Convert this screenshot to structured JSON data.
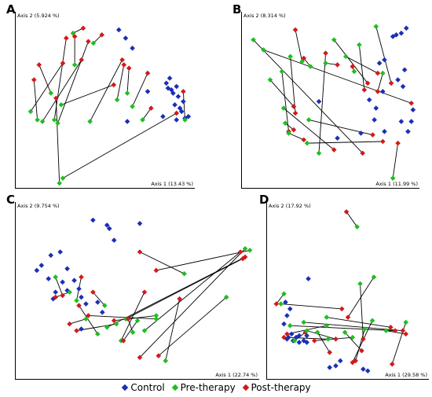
{
  "legend": {
    "items": [
      {
        "label": "Control",
        "color": "#1b2fb5"
      },
      {
        "label": "Pre-therapy",
        "color": "#1fbf1f"
      },
      {
        "label": "Post-therapy",
        "color": "#d11a1a"
      }
    ]
  },
  "chart_data": [
    {
      "panel": "A",
      "type": "scatter",
      "xlabel": "Axis 1 (13.43 %)",
      "ylabel": "Axis 2 (5.924 %)",
      "xlim": [
        0,
        1
      ],
      "ylim": [
        0,
        1
      ],
      "control": [
        [
          0.86,
          0.6
        ],
        [
          0.88,
          0.63
        ],
        [
          0.87,
          0.57
        ],
        [
          0.89,
          0.56
        ],
        [
          0.9,
          0.54
        ],
        [
          0.92,
          0.58
        ],
        [
          0.93,
          0.52
        ],
        [
          0.91,
          0.47
        ],
        [
          0.94,
          0.45
        ],
        [
          0.96,
          0.49
        ],
        [
          0.95,
          0.43
        ],
        [
          0.99,
          0.4
        ],
        [
          0.97,
          0.39
        ],
        [
          0.92,
          0.38
        ],
        [
          0.84,
          0.4
        ],
        [
          0.75,
          0.55
        ],
        [
          0.63,
          0.37
        ],
        [
          0.62,
          0.87
        ],
        [
          0.66,
          0.81
        ],
        [
          0.58,
          0.92
        ]
      ],
      "pairs": [
        {
          "pre": [
            0.06,
            0.43
          ],
          "post": [
            0.25,
            0.72
          ]
        },
        {
          "pre": [
            0.13,
            0.37
          ],
          "post": [
            0.36,
            0.74
          ]
        },
        {
          "pre": [
            0.18,
            0.54
          ],
          "post": [
            0.11,
            0.71
          ]
        },
        {
          "pre": [
            0.2,
            0.38
          ],
          "post": [
            0.27,
            0.87
          ]
        },
        {
          "pre": [
            0.22,
            0.36
          ],
          "post": [
            0.4,
            0.85
          ]
        },
        {
          "pre": [
            0.24,
            0.47
          ],
          "post": [
            0.55,
            0.59
          ]
        },
        {
          "pre": [
            0.25,
            0.03
          ],
          "post": [
            0.92,
            0.42
          ]
        },
        {
          "pre": [
            0.23,
            0.0
          ],
          "post": [
            0.21,
            0.51
          ]
        },
        {
          "pre": [
            0.31,
            0.9
          ],
          "post": [
            0.37,
            0.93
          ]
        },
        {
          "pre": [
            0.32,
            0.71
          ],
          "post": [
            0.32,
            0.88
          ]
        },
        {
          "pre": [
            0.41,
            0.37
          ],
          "post": [
            0.6,
            0.74
          ]
        },
        {
          "pre": [
            0.43,
            0.84
          ],
          "post": [
            0.48,
            0.89
          ]
        },
        {
          "pre": [
            0.57,
            0.5
          ],
          "post": [
            0.61,
            0.71
          ]
        },
        {
          "pre": [
            0.63,
            0.54
          ],
          "post": [
            0.64,
            0.69
          ]
        },
        {
          "pre": [
            0.66,
            0.46
          ],
          "post": [
            0.75,
            0.66
          ]
        },
        {
          "pre": [
            0.72,
            0.38
          ],
          "post": [
            0.77,
            0.45
          ]
        },
        {
          "pre": [
            0.97,
            0.38
          ],
          "post": [
            0.96,
            0.55
          ]
        },
        {
          "pre": [
            0.1,
            0.38
          ],
          "post": [
            0.08,
            0.62
          ]
        }
      ]
    },
    {
      "panel": "B",
      "type": "scatter",
      "xlabel": "Axis 1 (11.99 %)",
      "ylabel": "Axis 2 (8.314 %)",
      "xlim": [
        0,
        1
      ],
      "ylim": [
        0,
        1
      ],
      "control": [
        [
          0.79,
          0.72
        ],
        [
          0.82,
          0.74
        ],
        [
          0.87,
          0.88
        ],
        [
          0.89,
          0.89
        ],
        [
          0.92,
          0.9
        ],
        [
          0.95,
          0.93
        ],
        [
          0.9,
          0.62
        ],
        [
          0.94,
          0.68
        ],
        [
          0.93,
          0.58
        ],
        [
          0.81,
          0.55
        ],
        [
          0.77,
          0.45
        ],
        [
          0.76,
          0.38
        ],
        [
          0.92,
          0.37
        ],
        [
          0.96,
          0.31
        ],
        [
          0.98,
          0.37
        ],
        [
          0.99,
          0.44
        ],
        [
          0.82,
          0.31
        ],
        [
          0.68,
          0.3
        ],
        [
          0.54,
          0.27
        ],
        [
          0.43,
          0.49
        ],
        [
          0.73,
          0.5
        ]
      ],
      "pairs": [
        {
          "pre": [
            0.04,
            0.86
          ],
          "post": [
            0.69,
            0.18
          ]
        },
        {
          "pre": [
            0.1,
            0.8
          ],
          "post": [
            0.98,
            0.48
          ]
        },
        {
          "pre": [
            0.14,
            0.62
          ],
          "post": [
            0.28,
            0.46
          ]
        },
        {
          "pre": [
            0.21,
            0.67
          ],
          "post": [
            0.25,
            0.31
          ]
        },
        {
          "pre": [
            0.22,
            0.45
          ],
          "post": [
            0.52,
            0.2
          ]
        },
        {
          "pre": [
            0.23,
            0.36
          ],
          "post": [
            0.28,
            0.32
          ]
        },
        {
          "pre": [
            0.25,
            0.3
          ],
          "post": [
            0.34,
            0.26
          ]
        },
        {
          "pre": [
            0.26,
            0.76
          ],
          "post": [
            0.29,
            0.42
          ]
        },
        {
          "pre": [
            0.33,
            0.73
          ],
          "post": [
            0.29,
            0.92
          ]
        },
        {
          "pre": [
            0.36,
            0.24
          ],
          "post": [
            0.81,
            0.25
          ]
        },
        {
          "pre": [
            0.37,
            0.38
          ],
          "post": [
            0.75,
            0.29
          ]
        },
        {
          "pre": [
            0.38,
            0.7
          ],
          "post": [
            0.34,
            0.75
          ]
        },
        {
          "pre": [
            0.43,
            0.18
          ],
          "post": [
            0.47,
            0.78
          ]
        },
        {
          "pre": [
            0.47,
            0.72
          ],
          "post": [
            0.54,
            0.71
          ]
        },
        {
          "pre": [
            0.52,
            0.86
          ],
          "post": [
            0.72,
            0.6
          ]
        },
        {
          "pre": [
            0.59,
            0.76
          ],
          "post": [
            0.78,
            0.66
          ]
        },
        {
          "pre": [
            0.64,
            0.67
          ],
          "post": [
            0.63,
            0.7
          ]
        },
        {
          "pre": [
            0.67,
            0.83
          ],
          "post": [
            0.7,
            0.56
          ]
        },
        {
          "pre": [
            0.77,
            0.94
          ],
          "post": [
            0.86,
            0.6
          ]
        },
        {
          "pre": [
            0.81,
            0.66
          ],
          "post": [
            0.78,
            0.55
          ]
        },
        {
          "pre": [
            0.87,
            0.03
          ],
          "post": [
            0.9,
            0.24
          ]
        }
      ]
    },
    {
      "panel": "C",
      "type": "scatter",
      "xlabel": "Axis 1 (22.74 %)",
      "ylabel": "Axis 2 (9.754 %)",
      "xlim": [
        0,
        1
      ],
      "ylim": [
        0,
        1
      ],
      "control": [
        [
          0.07,
          0.62
        ],
        [
          0.09,
          0.65
        ],
        [
          0.12,
          0.57
        ],
        [
          0.15,
          0.49
        ],
        [
          0.13,
          0.71
        ],
        [
          0.17,
          0.73
        ],
        [
          0.18,
          0.55
        ],
        [
          0.2,
          0.63
        ],
        [
          0.23,
          0.56
        ],
        [
          0.25,
          0.51
        ],
        [
          0.31,
          0.92
        ],
        [
          0.37,
          0.89
        ],
        [
          0.38,
          0.87
        ],
        [
          0.4,
          0.8
        ],
        [
          0.51,
          0.9
        ],
        [
          0.33,
          0.43
        ],
        [
          0.35,
          0.37
        ],
        [
          0.28,
          0.42
        ],
        [
          0.26,
          0.46
        ],
        [
          0.14,
          0.45
        ],
        [
          0.26,
          0.27
        ],
        [
          0.2,
          0.5
        ]
      ],
      "pairs": [
        {
          "pre": [
            0.15,
            0.58
          ],
          "post": [
            0.18,
            0.47
          ]
        },
        {
          "pre": [
            0.21,
            0.49
          ],
          "post": [
            0.15,
            0.46
          ]
        },
        {
          "pre": [
            0.24,
            0.44
          ],
          "post": [
            0.26,
            0.58
          ]
        },
        {
          "pre": [
            0.28,
            0.33
          ],
          "post": [
            0.21,
            0.3
          ]
        },
        {
          "pre": [
            0.33,
            0.24
          ],
          "post": [
            0.25,
            0.41
          ]
        },
        {
          "pre": [
            0.36,
            0.41
          ],
          "post": [
            0.31,
            0.49
          ]
        },
        {
          "pre": [
            0.37,
            0.28
          ],
          "post": [
            0.96,
            0.7
          ]
        },
        {
          "pre": [
            0.41,
            0.3
          ],
          "post": [
            0.24,
            0.26
          ]
        },
        {
          "pre": [
            0.43,
            0.2
          ],
          "post": [
            0.53,
            0.49
          ]
        },
        {
          "pre": [
            0.45,
            0.33
          ],
          "post": [
            0.95,
            0.69
          ]
        },
        {
          "pre": [
            0.48,
            0.25
          ],
          "post": [
            0.46,
            0.33
          ]
        },
        {
          "pre": [
            0.5,
            0.32
          ],
          "post": [
            0.44,
            0.2
          ]
        },
        {
          "pre": [
            0.53,
            0.26
          ],
          "post": [
            0.94,
            0.73
          ]
        },
        {
          "pre": [
            0.58,
            0.35
          ],
          "post": [
            0.4,
            0.32
          ]
        },
        {
          "pre": [
            0.58,
            0.33
          ],
          "post": [
            0.29,
            0.35
          ]
        },
        {
          "pre": [
            0.62,
            0.08
          ],
          "post": [
            0.68,
            0.45
          ]
        },
        {
          "pre": [
            0.7,
            0.6
          ],
          "post": [
            0.51,
            0.73
          ]
        },
        {
          "pre": [
            0.96,
            0.75
          ],
          "post": [
            0.51,
            0.1
          ]
        },
        {
          "pre": [
            0.98,
            0.74
          ],
          "post": [
            0.58,
            0.62
          ]
        },
        {
          "pre": [
            0.88,
            0.46
          ],
          "post": [
            0.59,
            0.11
          ]
        }
      ]
    },
    {
      "panel": "D",
      "type": "scatter",
      "xlabel": "Axis 1 (29.58 %)",
      "ylabel": "Axis 2 (17.92 %)",
      "xlim": [
        0,
        1
      ],
      "ylim": [
        0,
        1
      ],
      "control": [
        [
          0.08,
          0.3
        ],
        [
          0.1,
          0.21
        ],
        [
          0.11,
          0.22
        ],
        [
          0.13,
          0.24
        ],
        [
          0.14,
          0.2
        ],
        [
          0.16,
          0.22
        ],
        [
          0.18,
          0.23
        ],
        [
          0.18,
          0.19
        ],
        [
          0.21,
          0.2
        ],
        [
          0.23,
          0.19
        ],
        [
          0.23,
          0.23
        ],
        [
          0.1,
          0.35
        ],
        [
          0.12,
          0.39
        ],
        [
          0.09,
          0.43
        ],
        [
          0.24,
          0.57
        ],
        [
          0.38,
          0.04
        ],
        [
          0.42,
          0.05
        ],
        [
          0.45,
          0.08
        ],
        [
          0.6,
          0.03
        ],
        [
          0.63,
          0.02
        ]
      ],
      "pairs": [
        {
          "pre": [
            0.06,
            0.42
          ],
          "post": [
            0.46,
            0.39
          ]
        },
        {
          "pre": [
            0.08,
            0.48
          ],
          "post": [
            0.03,
            0.42
          ]
        },
        {
          "pre": [
            0.12,
            0.29
          ],
          "post": [
            0.81,
            0.26
          ]
        },
        {
          "pre": [
            0.15,
            0.2
          ],
          "post": [
            0.22,
            0.25
          ]
        },
        {
          "pre": [
            0.21,
            0.31
          ],
          "post": [
            0.86,
            0.26
          ]
        },
        {
          "pre": [
            0.23,
            0.26
          ],
          "post": [
            0.42,
            0.21
          ]
        },
        {
          "pre": [
            0.3,
            0.25
          ],
          "post": [
            0.38,
            0.13
          ]
        },
        {
          "pre": [
            0.36,
            0.29
          ],
          "post": [
            0.1,
            0.24
          ]
        },
        {
          "pre": [
            0.36,
            0.34
          ],
          "post": [
            0.78,
            0.28
          ]
        },
        {
          "pre": [
            0.37,
            0.21
          ],
          "post": [
            0.08,
            0.22
          ]
        },
        {
          "pre": [
            0.48,
            0.25
          ],
          "post": [
            0.59,
            0.14
          ]
        },
        {
          "pre": [
            0.53,
            0.22
          ],
          "post": [
            0.28,
            0.2
          ]
        },
        {
          "pre": [
            0.58,
            0.54
          ],
          "post": [
            0.6,
            0.21
          ]
        },
        {
          "pre": [
            0.61,
            0.27
          ],
          "post": [
            0.55,
            0.08
          ]
        },
        {
          "pre": [
            0.66,
            0.32
          ],
          "post": [
            0.53,
            0.07
          ]
        },
        {
          "pre": [
            0.67,
            0.58
          ],
          "post": [
            0.5,
            0.34
          ]
        },
        {
          "pre": [
            0.75,
            0.26
          ],
          "post": [
            0.88,
            0.24
          ]
        },
        {
          "pre": [
            0.88,
            0.31
          ],
          "post": [
            0.79,
            0.06
          ]
        },
        {
          "pre": [
            0.56,
            0.88
          ],
          "post": [
            0.49,
            0.97
          ]
        }
      ]
    }
  ]
}
